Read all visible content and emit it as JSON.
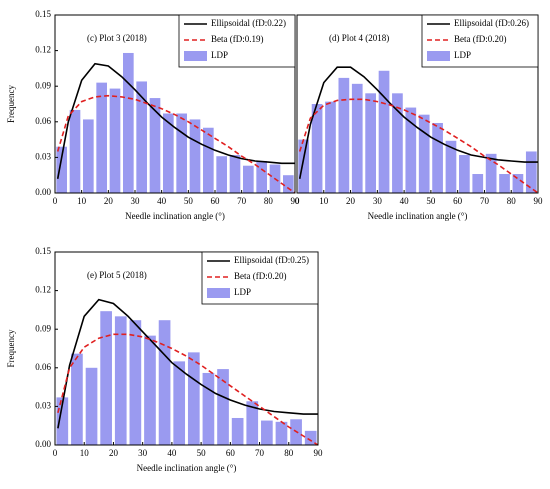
{
  "chart_data": [
    {
      "type": "histogram",
      "annotation": "(c) Plot 3 (2018)",
      "xlabel": "Needle inclination angle (°)",
      "ylabel": "Frequency",
      "xlim": [
        0,
        90
      ],
      "xticks": [
        0,
        10,
        20,
        30,
        40,
        50,
        60,
        70,
        80,
        90
      ],
      "ylim": [
        0,
        0.15
      ],
      "yticks": [
        {
          "value": 0,
          "label": "0.00"
        },
        {
          "value": 0.03,
          "label": "0.03"
        },
        {
          "value": 0.06,
          "label": "0.06"
        },
        {
          "value": 0.09,
          "label": "0.09"
        },
        {
          "value": 0.12,
          "label": "0.12"
        },
        {
          "value": 0.15,
          "label": "0.15"
        }
      ],
      "bins": [
        0,
        5,
        10,
        15,
        20,
        25,
        30,
        35,
        40,
        45,
        50,
        55,
        60,
        65,
        70,
        75,
        80,
        85,
        90
      ],
      "series": [
        {
          "name": "Ellipsoidal (fD:0.22)",
          "color": "#000000",
          "x": [
            1,
            5,
            10,
            15,
            20,
            25,
            30,
            35,
            40,
            45,
            50,
            55,
            60,
            65,
            70,
            75,
            80,
            85,
            90
          ],
          "values": [
            0.012,
            0.06,
            0.095,
            0.109,
            0.107,
            0.098,
            0.087,
            0.075,
            0.064,
            0.055,
            0.047,
            0.041,
            0.036,
            0.032,
            0.029,
            0.027,
            0.026,
            0.025,
            0.025
          ]
        },
        {
          "name": "Beta (fD:0.19)",
          "color": "#e02020",
          "x": [
            1,
            5,
            10,
            15,
            20,
            25,
            30,
            35,
            40,
            45,
            50,
            55,
            60,
            65,
            70,
            75,
            80,
            85,
            90
          ],
          "values": [
            0.035,
            0.065,
            0.077,
            0.081,
            0.082,
            0.081,
            0.079,
            0.075,
            0.071,
            0.066,
            0.06,
            0.053,
            0.046,
            0.039,
            0.031,
            0.024,
            0.016,
            0.008,
            0
          ]
        },
        {
          "name": "LDP",
          "color": "#9a9af0",
          "values": [
            0.039,
            0.07,
            0.062,
            0.093,
            0.088,
            0.118,
            0.094,
            0.08,
            0.067,
            0.067,
            0.062,
            0.055,
            0.031,
            0.032,
            0.023,
            0.027,
            0.024,
            0.015
          ]
        }
      ]
    },
    {
      "type": "histogram",
      "annotation": "(d) Plot 4 (2018)",
      "xlabel": "Needle inclination angle (°)",
      "xlim": [
        0,
        90
      ],
      "xticks": [
        0,
        10,
        20,
        30,
        40,
        50,
        60,
        70,
        80,
        90
      ],
      "ylim": [
        0,
        0.15
      ],
      "bins": [
        0,
        5,
        10,
        15,
        20,
        25,
        30,
        35,
        40,
        45,
        50,
        55,
        60,
        65,
        70,
        75,
        80,
        85,
        90
      ],
      "series": [
        {
          "name": "Ellipsoidal (fD:0.26)",
          "color": "#000000",
          "x": [
            1,
            5,
            10,
            15,
            20,
            25,
            30,
            35,
            40,
            45,
            50,
            55,
            60,
            65,
            70,
            75,
            80,
            85,
            90
          ],
          "values": [
            0.012,
            0.058,
            0.093,
            0.106,
            0.106,
            0.098,
            0.087,
            0.075,
            0.064,
            0.055,
            0.047,
            0.041,
            0.036,
            0.032,
            0.03,
            0.028,
            0.027,
            0.026,
            0.026
          ]
        },
        {
          "name": "Beta (fD:0.20)",
          "color": "#e02020",
          "x": [
            1,
            5,
            10,
            15,
            20,
            25,
            30,
            35,
            40,
            45,
            50,
            55,
            60,
            65,
            70,
            75,
            80,
            85,
            90
          ],
          "values": [
            0.035,
            0.063,
            0.074,
            0.078,
            0.079,
            0.079,
            0.077,
            0.074,
            0.07,
            0.065,
            0.059,
            0.053,
            0.046,
            0.039,
            0.031,
            0.024,
            0.016,
            0.008,
            0
          ]
        },
        {
          "name": "LDP",
          "color": "#9a9af0",
          "values": [
            0.045,
            0.075,
            0.077,
            0.097,
            0.092,
            0.084,
            0.103,
            0.084,
            0.072,
            0.066,
            0.059,
            0.044,
            0.032,
            0.016,
            0.033,
            0.016,
            0.016,
            0.035
          ]
        }
      ]
    },
    {
      "type": "histogram",
      "annotation": "(e) Plot 5 (2018)",
      "xlabel": "Needle inclination angle (°)",
      "ylabel": "Frequency",
      "xlim": [
        0,
        90
      ],
      "xticks": [
        0,
        10,
        20,
        30,
        40,
        50,
        60,
        70,
        80,
        90
      ],
      "ylim": [
        0,
        0.15
      ],
      "yticks": [
        {
          "value": 0,
          "label": "0.00"
        },
        {
          "value": 0.03,
          "label": "0.03"
        },
        {
          "value": 0.06,
          "label": "0.06"
        },
        {
          "value": 0.09,
          "label": "0.09"
        },
        {
          "value": 0.12,
          "label": "0.12"
        },
        {
          "value": 0.15,
          "label": "0.15"
        }
      ],
      "bins": [
        0,
        5,
        10,
        15,
        20,
        25,
        30,
        35,
        40,
        45,
        50,
        55,
        60,
        65,
        70,
        75,
        80,
        85,
        90
      ],
      "series": [
        {
          "name": "Ellipsoidal (fD:0.25)",
          "color": "#000000",
          "x": [
            1,
            5,
            10,
            15,
            20,
            25,
            30,
            35,
            40,
            45,
            50,
            55,
            60,
            65,
            70,
            75,
            80,
            85,
            90
          ],
          "values": [
            0.013,
            0.062,
            0.1,
            0.113,
            0.11,
            0.1,
            0.088,
            0.076,
            0.064,
            0.055,
            0.047,
            0.04,
            0.035,
            0.031,
            0.028,
            0.026,
            0.025,
            0.024,
            0.024
          ]
        },
        {
          "name": "Beta (fD:0.20)",
          "color": "#e02020",
          "x": [
            1,
            5,
            10,
            15,
            20,
            25,
            30,
            35,
            40,
            45,
            50,
            55,
            60,
            65,
            70,
            75,
            80,
            85,
            90
          ],
          "values": [
            0.025,
            0.06,
            0.076,
            0.083,
            0.086,
            0.086,
            0.084,
            0.08,
            0.075,
            0.069,
            0.062,
            0.054,
            0.046,
            0.038,
            0.03,
            0.022,
            0.014,
            0.007,
            0
          ]
        },
        {
          "name": "LDP",
          "color": "#9a9af0",
          "values": [
            0.037,
            0.071,
            0.06,
            0.104,
            0.1,
            0.097,
            0.085,
            0.097,
            0.065,
            0.072,
            0.056,
            0.059,
            0.021,
            0.034,
            0.019,
            0.018,
            0.02,
            0.011
          ]
        }
      ]
    }
  ]
}
